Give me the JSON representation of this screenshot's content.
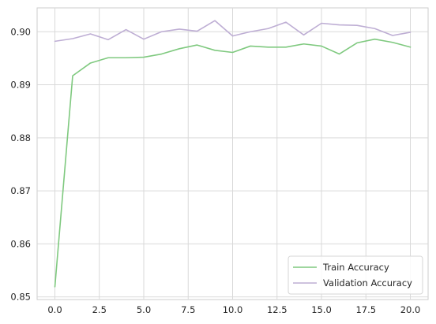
{
  "chart_data": {
    "type": "line",
    "title": "",
    "xlabel": "",
    "ylabel": "",
    "xlim": [
      -1.0,
      21.0
    ],
    "ylim": [
      0.8495,
      0.9045
    ],
    "x_ticks": [
      0.0,
      2.5,
      5.0,
      7.5,
      10.0,
      12.5,
      15.0,
      17.5,
      20.0
    ],
    "x_tick_labels": [
      "0.0",
      "2.5",
      "5.0",
      "7.5",
      "10.0",
      "12.5",
      "15.0",
      "17.5",
      "20.0"
    ],
    "y_ticks": [
      0.85,
      0.86,
      0.87,
      0.88,
      0.89,
      0.9
    ],
    "y_tick_labels": [
      "0.85",
      "0.86",
      "0.87",
      "0.88",
      "0.89",
      "0.90"
    ],
    "grid": true,
    "legend_position": "lower-right",
    "x": [
      0,
      1,
      2,
      3,
      4,
      5,
      6,
      7,
      8,
      9,
      10,
      11,
      12,
      13,
      14,
      15,
      16,
      17,
      18,
      19,
      20
    ],
    "series": [
      {
        "name": "Train Accuracy",
        "color": "#7fc97f",
        "values": [
          0.8519,
          0.8917,
          0.8941,
          0.8951,
          0.8951,
          0.8952,
          0.8958,
          0.8968,
          0.8975,
          0.8965,
          0.8961,
          0.8973,
          0.8971,
          0.8971,
          0.8977,
          0.8973,
          0.8958,
          0.8979,
          0.8986,
          0.898,
          0.8971
        ]
      },
      {
        "name": "Validation Accuracy",
        "color": "#beaed4",
        "values": [
          0.8982,
          0.8987,
          0.8996,
          0.8985,
          0.9004,
          0.8986,
          0.9,
          0.9005,
          0.9001,
          0.9021,
          0.8992,
          0.9,
          0.9006,
          0.9018,
          0.8994,
          0.9016,
          0.9013,
          0.9012,
          0.9006,
          0.8993,
          0.8999
        ]
      }
    ]
  }
}
